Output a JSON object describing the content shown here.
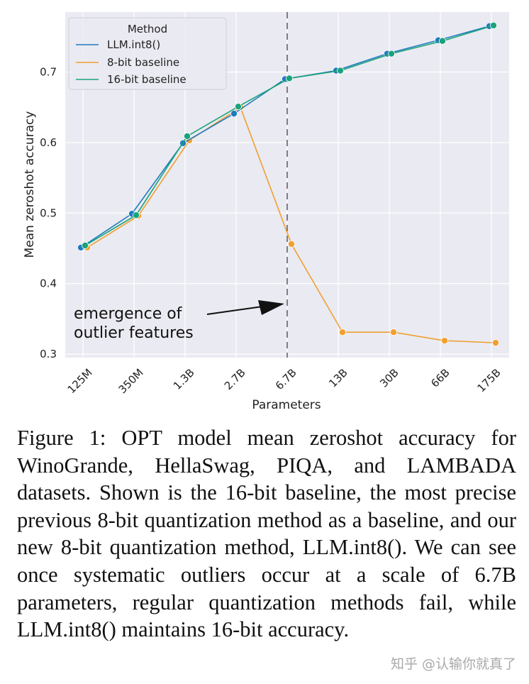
{
  "chart_data": {
    "type": "line",
    "categories": [
      "125M",
      "350M",
      "1.3B",
      "2.7B",
      "6.7B",
      "13B",
      "30B",
      "66B",
      "175B"
    ],
    "xlabel": "Parameters",
    "ylabel": "Mean zeroshot accuracy",
    "ylim": [
      0.295,
      0.785
    ],
    "yticks": [
      "0.3",
      "0.4",
      "0.5",
      "0.6",
      "0.7"
    ],
    "grid": true,
    "legend": {
      "title": "Method",
      "position": "top-left",
      "items": [
        "LLM.int8()",
        "8-bit baseline",
        "16-bit baseline"
      ]
    },
    "series": [
      {
        "name": "LLM.int8()",
        "color": "#1f7bbf",
        "values": [
          0.451,
          0.499,
          0.599,
          0.641,
          0.69,
          0.702,
          0.726,
          0.745,
          0.765
        ]
      },
      {
        "name": "8-bit baseline",
        "color": "#f0a030",
        "values": [
          0.451,
          0.496,
          0.603,
          0.65,
          0.456,
          0.331,
          0.331,
          0.319,
          0.316
        ]
      },
      {
        "name": "16-bit baseline",
        "color": "#1aa37a",
        "values": [
          0.454,
          0.497,
          0.609,
          0.651,
          0.691,
          0.702,
          0.726,
          0.744,
          0.766
        ]
      }
    ],
    "annotation": {
      "line1": "emergence of",
      "line2": "outlier features",
      "at_category": "6.7B"
    }
  },
  "caption": "Figure 1: OPT model mean zeroshot accuracy for WinoGrande, HellaSwag, PIQA, and LAMBADA datasets. Shown is the 16-bit baseline, the most precise previous 8-bit quantization method as a baseline, and our new 8-bit quantization method, LLM.int8(). We can see once systematic outliers occur at a scale of 6.7B parameters, regular quantization methods fail, while LLM.int8() maintains 16-bit accuracy.",
  "watermark": "知乎 @认输你就真了"
}
